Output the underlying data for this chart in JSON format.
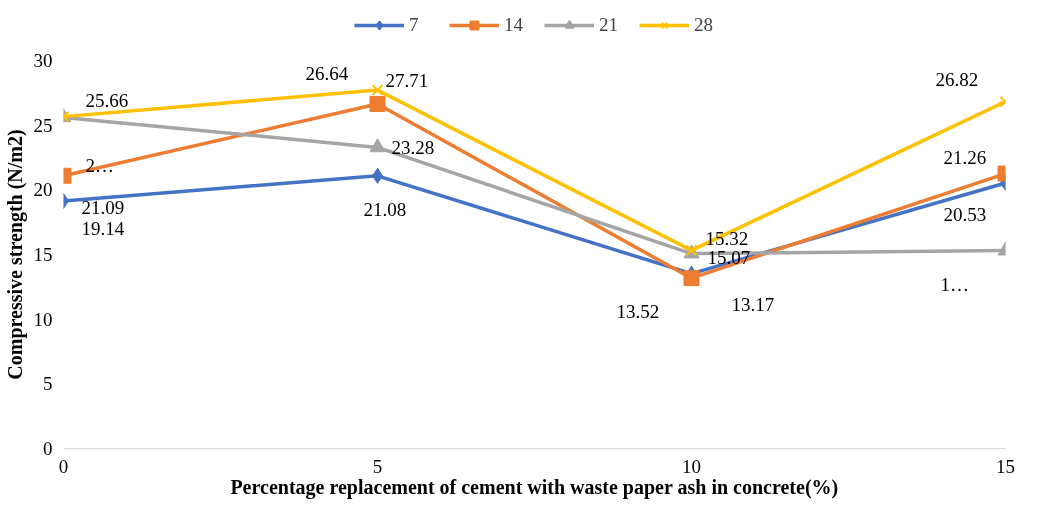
{
  "chart_data": {
    "type": "line",
    "xlabel": "Percentage replacement of cement with waste paper ash in concrete(%)",
    "ylabel": "Compressive strength (N/m2)",
    "x": [
      0,
      5,
      10,
      15
    ],
    "xlim": [
      0,
      15
    ],
    "xticks": [
      0,
      5,
      10,
      15
    ],
    "ylim": [
      0,
      30
    ],
    "yticks": [
      0,
      5,
      10,
      15,
      20,
      25,
      30
    ],
    "grid": false,
    "legend": "top",
    "series": [
      {
        "name": "7",
        "color": "#4472c4",
        "marker": "diamond",
        "values": [
          19.14,
          21.08,
          13.52,
          20.53
        ],
        "value_labels": [
          "19.14",
          "21.08",
          "13.52",
          "20.53"
        ]
      },
      {
        "name": "14",
        "color": "#ed7d31",
        "marker": "square",
        "values": [
          21.09,
          26.64,
          13.17,
          21.26
        ],
        "value_labels": [
          "21.09",
          "26.64",
          "13.17",
          "21.26"
        ]
      },
      {
        "name": "21",
        "color": "#a5a5a5",
        "marker": "triangle",
        "values": [
          25.6,
          23.28,
          15.07,
          15.3
        ],
        "value_labels": [
          "2…",
          "23.28",
          "15.07",
          "1…"
        ]
      },
      {
        "name": "28",
        "color": "#ffc000",
        "marker": "cross",
        "values": [
          25.66,
          27.71,
          15.32,
          26.82
        ],
        "value_labels": [
          "25.66",
          "27.71",
          "15.32",
          "26.82"
        ]
      }
    ]
  }
}
